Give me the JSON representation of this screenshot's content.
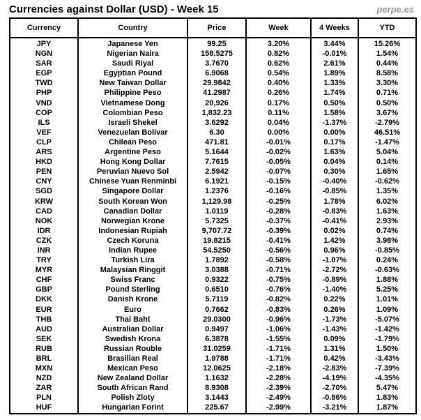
{
  "page": {
    "title": "Currencies against Dollar (USD) - Week 15",
    "watermark": "perpe.es"
  },
  "colors": {
    "positive": "#30b030",
    "negative": "#ff3333",
    "watermark": "#9b9b9b",
    "border": "#000000"
  },
  "chart_data": {
    "type": "table",
    "title": "Currencies against Dollar (USD) - Week 15",
    "columns": [
      "Currency",
      "Country",
      "Price",
      "Week",
      "4 Weeks",
      "YTD"
    ],
    "rows": [
      [
        "JPY",
        "Japanese Yen",
        "99.25",
        "3.20%",
        "3.44%",
        "15.26%"
      ],
      [
        "NGN",
        "Nigerian Naira",
        "158.5275",
        "0.82%",
        "-0.01%",
        "1.54%"
      ],
      [
        "SAR",
        "Saudi Riyal",
        "3.7670",
        "0.62%",
        "2.61%",
        "0.44%"
      ],
      [
        "EGP",
        "Egyptian Pound",
        "6.9068",
        "0.54%",
        "1.89%",
        "8.58%"
      ],
      [
        "TWD",
        "New Taiwan Dollar",
        "29.9842",
        "0.40%",
        "1.33%",
        "3.30%"
      ],
      [
        "PHP",
        "Philippine Peso",
        "41.2987",
        "0.26%",
        "1.74%",
        "0.71%"
      ],
      [
        "VND",
        "Vietnamese Dong",
        "20,926",
        "0.17%",
        "0.50%",
        "0.50%"
      ],
      [
        "COP",
        "Colombian Peso",
        "1,832.23",
        "0.11%",
        "1.58%",
        "3.67%"
      ],
      [
        "ILS",
        "Israeli Shekel",
        "3.6292",
        "0.04%",
        "-1.37%",
        "-2.79%"
      ],
      [
        "VEF",
        "Venezuelan Bolivar",
        "6.30",
        "0.00%",
        "0.00%",
        "46.51%"
      ],
      [
        "CLP",
        "Chilean Peso",
        "471.81",
        "-0.01%",
        "0.17%",
        "-1.47%"
      ],
      [
        "ARS",
        "Argentine Peso",
        "5.1644",
        "-0.02%",
        "1.63%",
        "5.04%"
      ],
      [
        "HKD",
        "Hong Kong Dollar",
        "7.7615",
        "-0.05%",
        "0.04%",
        "0.14%"
      ],
      [
        "PEN",
        "Peruvian Nuevo Sol",
        "2.5942",
        "-0.07%",
        "0.30%",
        "1.65%"
      ],
      [
        "CNY",
        "Chinese Yuan Renminbi",
        "6.1921",
        "-0.15%",
        "-0.40%",
        "-0.62%"
      ],
      [
        "SGD",
        "Singapore Dollar",
        "1.2376",
        "-0.16%",
        "-0.85%",
        "1.35%"
      ],
      [
        "KRW",
        "South Korean Won",
        "1,129.98",
        "-0.25%",
        "1.78%",
        "6.02%"
      ],
      [
        "CAD",
        "Canadian Dollar",
        "1.0119",
        "-0.28%",
        "-0.83%",
        "1.63%"
      ],
      [
        "NOK",
        "Norwegian Krone",
        "5.7325",
        "-0.37%",
        "-0.41%",
        "2.93%"
      ],
      [
        "IDR",
        "Indonesian Rupiah",
        "9,707.72",
        "-0.39%",
        "0.02%",
        "0.74%"
      ],
      [
        "CZK",
        "Czech Koruna",
        "19.8215",
        "-0.41%",
        "1.42%",
        "3.98%"
      ],
      [
        "INR",
        "Indian Rupee",
        "54.5250",
        "-0.56%",
        "0.96%",
        "-0.85%"
      ],
      [
        "TRY",
        "Turkish Lira",
        "1.7892",
        "-0.58%",
        "-1.07%",
        "0.24%"
      ],
      [
        "MYR",
        "Malaysian Ringgit",
        "3.0388",
        "-0.71%",
        "-2.72%",
        "-0.63%"
      ],
      [
        "CHF",
        "Swiss Franc",
        "0.9322",
        "-0.75%",
        "-0.89%",
        "1.88%"
      ],
      [
        "GBP",
        "Pound Sterling",
        "0.6510",
        "-0.76%",
        "-1.40%",
        "5.25%"
      ],
      [
        "DKK",
        "Danish Krone",
        "5.7119",
        "-0.82%",
        "0.22%",
        "1.01%"
      ],
      [
        "EUR",
        "Euro",
        "0.7662",
        "-0.83%",
        "0.26%",
        "1.09%"
      ],
      [
        "THB",
        "Thai Baht",
        "29.0300",
        "-0.96%",
        "-1.73%",
        "-5.07%"
      ],
      [
        "AUD",
        "Australian Dollar",
        "0.9497",
        "-1.06%",
        "-1.43%",
        "-1.42%"
      ],
      [
        "SEK",
        "Swedish Krona",
        "6.3878",
        "-1.55%",
        "0.09%",
        "-1.79%"
      ],
      [
        "RUB",
        "Russian Rouble",
        "31.0259",
        "-1.71%",
        "1.31%",
        "1.50%"
      ],
      [
        "BRL",
        "Brasilian Real",
        "1.9788",
        "-1.71%",
        "0.42%",
        "-3.43%"
      ],
      [
        "MXN",
        "Mexican Peso",
        "12.0625",
        "-2.18%",
        "-2.83%",
        "-7.39%"
      ],
      [
        "NZD",
        "New Zealand Dollar",
        "1.1632",
        "-2.28%",
        "-4.19%",
        "-4.35%"
      ],
      [
        "ZAR",
        "South African Rand",
        "8.9308",
        "-2.39%",
        "-2.70%",
        "5.47%"
      ],
      [
        "PLN",
        "Polish Zloty",
        "3.1443",
        "-2.49%",
        "-0.86%",
        "1.83%"
      ],
      [
        "HUF",
        "Hungarian Forint",
        "225.67",
        "-2.99%",
        "-3.21%",
        "1.87%"
      ]
    ]
  }
}
